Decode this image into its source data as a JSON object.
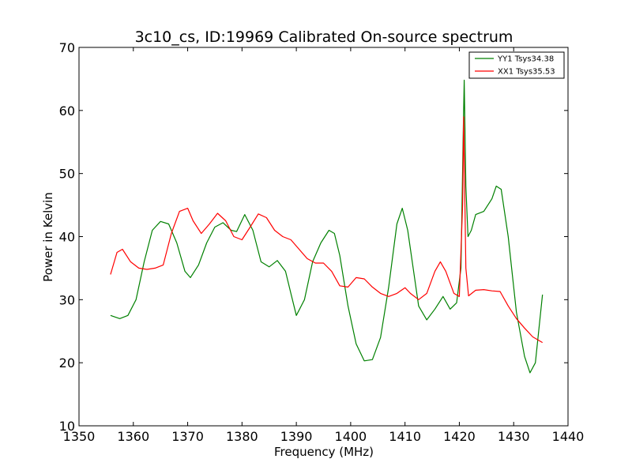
{
  "chart_data": {
    "type": "line",
    "title": "3c10_cs, ID:19969 Calibrated On-source spectrum",
    "xlabel": "Frequency (MHz)",
    "ylabel": "Power in Kelvin",
    "xlim": [
      1350,
      1440
    ],
    "ylim": [
      10,
      70
    ],
    "xticks": [
      1350,
      1360,
      1370,
      1380,
      1390,
      1400,
      1410,
      1420,
      1430,
      1440
    ],
    "yticks": [
      10,
      20,
      30,
      40,
      50,
      60,
      70
    ],
    "grid": false,
    "legend_position": "top-right",
    "series": [
      {
        "name": "YY1 Tsys34.38",
        "color": "#008000",
        "x": [
          1355.8,
          1357.5,
          1359,
          1360.5,
          1362,
          1363.5,
          1365,
          1366.5,
          1368,
          1369.5,
          1370.5,
          1372,
          1373.5,
          1375,
          1376.5,
          1378,
          1379,
          1380.5,
          1382,
          1383.5,
          1385,
          1386.5,
          1388,
          1389,
          1390,
          1391.5,
          1393,
          1394.5,
          1396,
          1397,
          1398,
          1399.5,
          1401,
          1402.5,
          1404,
          1405.5,
          1407,
          1408.5,
          1409.5,
          1410.5,
          1411.5,
          1412.5,
          1414,
          1415.5,
          1417,
          1418.3,
          1419.5,
          1420.3,
          1420.7,
          1420.9,
          1421.2,
          1421.6,
          1422.2,
          1423,
          1424.5,
          1426,
          1426.8,
          1427.7,
          1429,
          1430.5,
          1432,
          1433,
          1434,
          1435.3
        ],
        "y": [
          27.5,
          27,
          27.5,
          30,
          36,
          41,
          42.4,
          42,
          39,
          34.5,
          33.5,
          35.5,
          39,
          41.5,
          42.2,
          41,
          40.8,
          43.5,
          41,
          36,
          35.2,
          36.2,
          34.5,
          31,
          27.5,
          30,
          36,
          39,
          41,
          40.5,
          37,
          29,
          23,
          20.3,
          20.5,
          24,
          32,
          42,
          44.5,
          41,
          35,
          29,
          26.8,
          28.5,
          30.5,
          28.5,
          29.5,
          35,
          56,
          64.8,
          48,
          40,
          41,
          43.5,
          44,
          46,
          48,
          47.5,
          40,
          28,
          21,
          18.4,
          20,
          30.8
        ]
      },
      {
        "name": "XX1 Tsys35.53",
        "color": "#ff0000",
        "x": [
          1355.8,
          1357,
          1358,
          1359.5,
          1361,
          1362.5,
          1364,
          1365.5,
          1367,
          1368.5,
          1370,
          1371,
          1372.5,
          1374,
          1375.5,
          1377,
          1378.5,
          1380,
          1381.5,
          1383,
          1384.5,
          1386,
          1387.5,
          1389,
          1390.5,
          1392,
          1393.5,
          1395,
          1396.5,
          1398,
          1399.5,
          1401,
          1402.5,
          1404,
          1405.5,
          1407,
          1408.5,
          1410,
          1411,
          1412.5,
          1414,
          1415.5,
          1416.5,
          1417.5,
          1419,
          1420,
          1420.6,
          1420.8,
          1421.2,
          1421.7,
          1423,
          1424.5,
          1426,
          1427.5,
          1429,
          1430.5,
          1432,
          1433.5,
          1435.3
        ],
        "y": [
          34,
          37.5,
          38,
          36,
          35,
          34.8,
          35,
          35.5,
          40.5,
          44,
          44.5,
          42.5,
          40.5,
          42,
          43.7,
          42.5,
          40,
          39.5,
          41.5,
          43.6,
          43,
          41,
          40,
          39.5,
          38,
          36.5,
          35.8,
          35.8,
          34.5,
          32.2,
          32,
          33.5,
          33.3,
          32,
          31,
          30.5,
          31,
          31.9,
          31,
          30,
          31,
          34.5,
          36,
          34.5,
          31,
          30.5,
          45,
          59,
          35,
          30.6,
          31.5,
          31.6,
          31.4,
          31.3,
          29,
          27,
          25.5,
          24.1,
          23.2
        ]
      }
    ]
  }
}
